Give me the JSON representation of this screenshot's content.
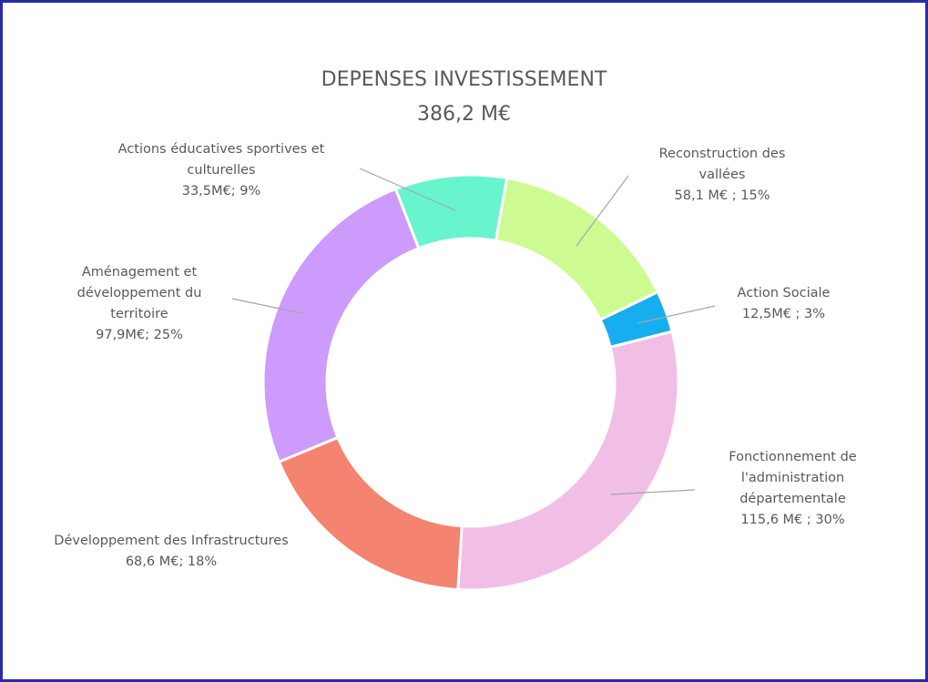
{
  "chart_data": {
    "type": "pie",
    "donut": true,
    "title": "DEPENSES INVESTISSEMENT",
    "subtitle": "386,2 M€",
    "categories": [
      "Reconstruction des vallées",
      "Action Sociale",
      "Fonctionnement de l'administration départementale",
      "Développement des Infrastructures",
      "Aménagement et développement du territoire",
      "Actions éducatives sportives et culturelles"
    ],
    "values": [
      58.1,
      12.5,
      115.6,
      68.6,
      97.9,
      33.5
    ],
    "value_labels": [
      "58,1 M€ ; 15%",
      "12,5M€ ; 3%",
      "115,6 M€ ; 30%",
      "68,6 M€; 18%",
      "97,9M€; 25%",
      "33,5M€; 9%"
    ],
    "colors": [
      "#cdfb91",
      "#16aeef",
      "#f1bfe6",
      "#f4836f",
      "#cd9bfb",
      "#68f4cd"
    ]
  }
}
